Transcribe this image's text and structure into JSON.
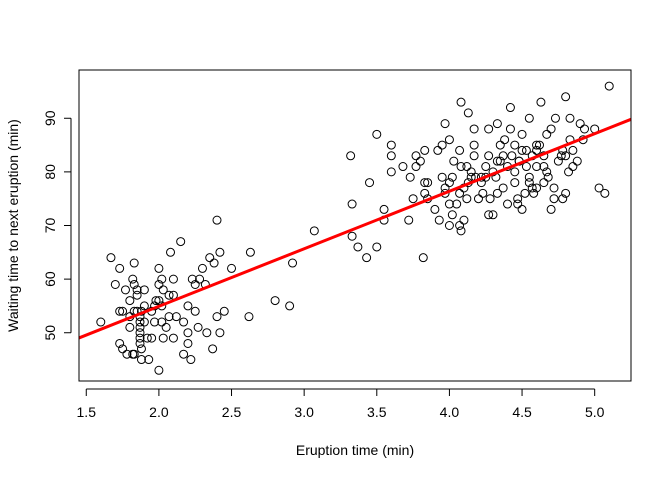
{
  "chart_data": {
    "type": "scatter",
    "title": "",
    "xlabel": "Eruption time (min)",
    "ylabel": "Waiting time to next eruption (min)",
    "xlim": [
      1.45,
      5.25
    ],
    "ylim": [
      41,
      99
    ],
    "xticks": [
      1.5,
      2.0,
      2.5,
      3.0,
      3.5,
      4.0,
      4.5,
      5.0
    ],
    "xtick_labels": [
      "1.5",
      "2.0",
      "2.5",
      "3.0",
      "3.5",
      "4.0",
      "4.5",
      "5.0"
    ],
    "yticks": [
      50,
      60,
      70,
      80,
      90
    ],
    "ytick_labels": [
      "50",
      "60",
      "70",
      "80",
      "90"
    ],
    "grid": false,
    "legend": "none",
    "point_color": "#000000",
    "regression_line": {
      "color": "#ff0000",
      "intercept": 33.47,
      "slope": 10.73
    },
    "points": [
      [
        1.6,
        52
      ],
      [
        1.67,
        64
      ],
      [
        1.7,
        59
      ],
      [
        1.73,
        54
      ],
      [
        1.73,
        48
      ],
      [
        1.73,
        62
      ],
      [
        1.75,
        54
      ],
      [
        1.75,
        47
      ],
      [
        1.77,
        58
      ],
      [
        1.78,
        46
      ],
      [
        1.8,
        51
      ],
      [
        1.8,
        53
      ],
      [
        1.8,
        56
      ],
      [
        1.82,
        60
      ],
      [
        1.82,
        46
      ],
      [
        1.83,
        54
      ],
      [
        1.83,
        59
      ],
      [
        1.83,
        46
      ],
      [
        1.83,
        63
      ],
      [
        1.85,
        57
      ],
      [
        1.85,
        54
      ],
      [
        1.85,
        58
      ],
      [
        1.87,
        48
      ],
      [
        1.87,
        50
      ],
      [
        1.87,
        51
      ],
      [
        1.87,
        52
      ],
      [
        1.87,
        53
      ],
      [
        1.87,
        49
      ],
      [
        1.88,
        45
      ],
      [
        1.88,
        47
      ],
      [
        1.88,
        54
      ],
      [
        1.9,
        55
      ],
      [
        1.9,
        52
      ],
      [
        1.9,
        58
      ],
      [
        1.92,
        49
      ],
      [
        1.93,
        45
      ],
      [
        1.95,
        49
      ],
      [
        1.95,
        54
      ],
      [
        1.97,
        52
      ],
      [
        1.97,
        55
      ],
      [
        1.98,
        56
      ],
      [
        2.0,
        43
      ],
      [
        2.0,
        62
      ],
      [
        2.0,
        59
      ],
      [
        2.0,
        56
      ],
      [
        2.02,
        55
      ],
      [
        2.02,
        52
      ],
      [
        2.02,
        60
      ],
      [
        2.03,
        49
      ],
      [
        2.03,
        58
      ],
      [
        2.05,
        51
      ],
      [
        2.07,
        53
      ],
      [
        2.07,
        57
      ],
      [
        2.08,
        65
      ],
      [
        2.1,
        57
      ],
      [
        2.1,
        60
      ],
      [
        2.1,
        49
      ],
      [
        2.12,
        53
      ],
      [
        2.15,
        67
      ],
      [
        2.17,
        46
      ],
      [
        2.17,
        52
      ],
      [
        2.2,
        55
      ],
      [
        2.2,
        50
      ],
      [
        2.2,
        48
      ],
      [
        2.22,
        45
      ],
      [
        2.23,
        60
      ],
      [
        2.25,
        54
      ],
      [
        2.25,
        59
      ],
      [
        2.27,
        51
      ],
      [
        2.28,
        60
      ],
      [
        2.3,
        62
      ],
      [
        2.32,
        59
      ],
      [
        2.33,
        50
      ],
      [
        2.35,
        64
      ],
      [
        2.37,
        47
      ],
      [
        2.38,
        63
      ],
      [
        2.4,
        71
      ],
      [
        2.4,
        53
      ],
      [
        2.42,
        65
      ],
      [
        2.42,
        50
      ],
      [
        2.45,
        54
      ],
      [
        2.5,
        62
      ],
      [
        2.63,
        65
      ],
      [
        2.62,
        53
      ],
      [
        2.8,
        56
      ],
      [
        2.9,
        55
      ],
      [
        2.92,
        63
      ],
      [
        3.07,
        69
      ],
      [
        3.32,
        83
      ],
      [
        3.33,
        74
      ],
      [
        3.33,
        68
      ],
      [
        3.37,
        66
      ],
      [
        3.43,
        64
      ],
      [
        3.45,
        78
      ],
      [
        3.5,
        87
      ],
      [
        3.5,
        66
      ],
      [
        3.55,
        73
      ],
      [
        3.55,
        71
      ],
      [
        3.6,
        85
      ],
      [
        3.6,
        83
      ],
      [
        3.6,
        80
      ],
      [
        3.68,
        81
      ],
      [
        3.72,
        71
      ],
      [
        3.73,
        79
      ],
      [
        3.75,
        75
      ],
      [
        3.77,
        83
      ],
      [
        3.77,
        81
      ],
      [
        3.8,
        82
      ],
      [
        3.82,
        64
      ],
      [
        3.83,
        76
      ],
      [
        3.83,
        84
      ],
      [
        3.83,
        78
      ],
      [
        3.85,
        78
      ],
      [
        3.85,
        75
      ],
      [
        3.9,
        73
      ],
      [
        3.92,
        84
      ],
      [
        3.93,
        71
      ],
      [
        3.95,
        79
      ],
      [
        3.95,
        85
      ],
      [
        3.97,
        89
      ],
      [
        3.97,
        77
      ],
      [
        4.0,
        70
      ],
      [
        4.0,
        86
      ],
      [
        4.0,
        78
      ],
      [
        4.0,
        74
      ],
      [
        4.02,
        79
      ],
      [
        4.03,
        82
      ],
      [
        4.05,
        74
      ],
      [
        4.07,
        70
      ],
      [
        4.07,
        76
      ],
      [
        4.07,
        84
      ],
      [
        4.08,
        69
      ],
      [
        4.08,
        81
      ],
      [
        4.08,
        93
      ],
      [
        4.1,
        71
      ],
      [
        4.1,
        77
      ],
      [
        4.12,
        75
      ],
      [
        4.12,
        81
      ],
      [
        4.13,
        91
      ],
      [
        4.13,
        78
      ],
      [
        4.15,
        80
      ],
      [
        4.17,
        83
      ],
      [
        4.17,
        85
      ],
      [
        4.17,
        88
      ],
      [
        4.18,
        79
      ],
      [
        4.2,
        75
      ],
      [
        4.22,
        79
      ],
      [
        4.23,
        76
      ],
      [
        4.25,
        79
      ],
      [
        4.25,
        81
      ],
      [
        4.27,
        83
      ],
      [
        4.27,
        88
      ],
      [
        4.28,
        75
      ],
      [
        4.3,
        72
      ],
      [
        4.3,
        80
      ],
      [
        4.32,
        79
      ],
      [
        4.33,
        82
      ],
      [
        4.33,
        89
      ],
      [
        4.35,
        85
      ],
      [
        4.35,
        82
      ],
      [
        4.37,
        77
      ],
      [
        4.38,
        86
      ],
      [
        4.4,
        81
      ],
      [
        4.42,
        92
      ],
      [
        4.42,
        88
      ],
      [
        4.43,
        83
      ],
      [
        4.45,
        85
      ],
      [
        4.45,
        80
      ],
      [
        4.47,
        75
      ],
      [
        4.47,
        74
      ],
      [
        4.48,
        82
      ],
      [
        4.5,
        73
      ],
      [
        4.5,
        84
      ],
      [
        4.5,
        87
      ],
      [
        4.52,
        76
      ],
      [
        4.53,
        81
      ],
      [
        4.55,
        90
      ],
      [
        4.55,
        78
      ],
      [
        4.57,
        83
      ],
      [
        4.58,
        76
      ],
      [
        4.6,
        77
      ],
      [
        4.6,
        81
      ],
      [
        4.6,
        84
      ],
      [
        4.62,
        85
      ],
      [
        4.63,
        93
      ],
      [
        4.65,
        78
      ],
      [
        4.65,
        83
      ],
      [
        4.67,
        80
      ],
      [
        4.67,
        87
      ],
      [
        4.68,
        79
      ],
      [
        4.7,
        88
      ],
      [
        4.7,
        73
      ],
      [
        4.72,
        75
      ],
      [
        4.73,
        90
      ],
      [
        4.75,
        82
      ],
      [
        4.77,
        83
      ],
      [
        4.78,
        75
      ],
      [
        4.8,
        94
      ],
      [
        4.8,
        83
      ],
      [
        4.8,
        76
      ],
      [
        4.82,
        80
      ],
      [
        4.83,
        90
      ],
      [
        4.83,
        86
      ],
      [
        4.85,
        84
      ],
      [
        4.88,
        82
      ],
      [
        4.9,
        89
      ],
      [
        4.92,
        86
      ],
      [
        4.93,
        88
      ],
      [
        5.0,
        88
      ],
      [
        5.03,
        77
      ],
      [
        5.07,
        76
      ],
      [
        5.1,
        96
      ],
      [
        4.22,
        78
      ],
      [
        4.33,
        76
      ],
      [
        4.4,
        74
      ],
      [
        4.45,
        78
      ],
      [
        4.53,
        84
      ],
      [
        4.57,
        77
      ],
      [
        4.6,
        85
      ],
      [
        4.65,
        81
      ],
      [
        4.72,
        77
      ],
      [
        4.78,
        84
      ],
      [
        4.85,
        81
      ],
      [
        3.97,
        76
      ],
      [
        4.02,
        72
      ],
      [
        4.15,
        79
      ],
      [
        4.27,
        72
      ],
      [
        4.37,
        83
      ],
      [
        4.48,
        82
      ],
      [
        4.55,
        79
      ]
    ]
  }
}
